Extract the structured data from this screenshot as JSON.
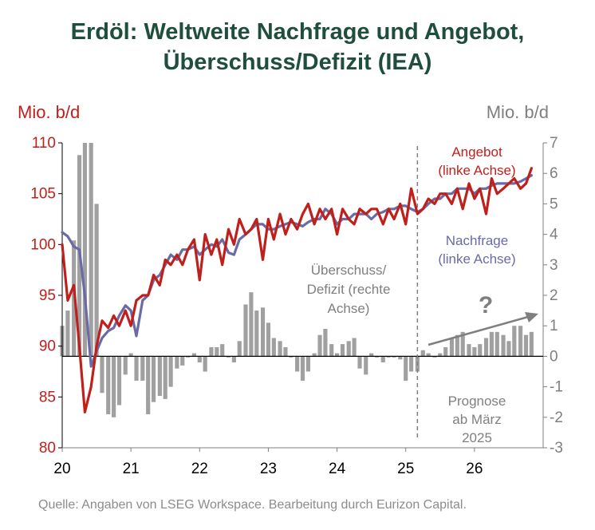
{
  "title": {
    "line1": "Erdöl: Weltweite Nachfrage und Angebot,",
    "line2": "Überschuss/Defizit (IEA)"
  },
  "source": "Quelle: Angaben von LSEG Workspace. Bearbeitung durch Eurizon Capital.",
  "colors": {
    "supply": "#c0201c",
    "demand": "#6a6aa6",
    "balance": "#a0a0a0",
    "axis_left": "#c0201c",
    "axis_right": "#7f7f7f",
    "title": "#1f4e3d",
    "annotation": "#7f7f7f"
  },
  "chart_data": {
    "type": "line",
    "left_axis": {
      "unit_label": "Mio. b/d",
      "range": [
        80,
        110
      ],
      "ticks": [
        80,
        85,
        90,
        95,
        100,
        105,
        110
      ]
    },
    "right_axis": {
      "unit_label": "Mio. b/d",
      "range": [
        -3,
        7
      ],
      "ticks": [
        -3,
        -2,
        -1,
        0,
        1,
        2,
        3,
        4,
        5,
        6,
        7
      ]
    },
    "x_axis": {
      "range": [
        2020.0,
        2027.0
      ],
      "ticks": [
        {
          "value": 2020,
          "label": "20"
        },
        {
          "value": 2021,
          "label": "21"
        },
        {
          "value": 2022,
          "label": "22"
        },
        {
          "value": 2023,
          "label": "23"
        },
        {
          "value": 2024,
          "label": "24"
        },
        {
          "value": 2025,
          "label": "25"
        },
        {
          "value": 2026,
          "label": "26"
        }
      ]
    },
    "forecast_start": 2025.17,
    "grid": false,
    "series": [
      {
        "name": "Angebot",
        "axis": "left",
        "type": "line",
        "x": [
          2020.0,
          2020.08,
          2020.17,
          2020.25,
          2020.33,
          2020.42,
          2020.5,
          2020.58,
          2020.67,
          2020.75,
          2020.83,
          2020.92,
          2021.0,
          2021.08,
          2021.17,
          2021.25,
          2021.33,
          2021.42,
          2021.5,
          2021.58,
          2021.67,
          2021.75,
          2021.83,
          2021.92,
          2022.0,
          2022.08,
          2022.17,
          2022.25,
          2022.33,
          2022.42,
          2022.5,
          2022.58,
          2022.67,
          2022.75,
          2022.83,
          2022.92,
          2023.0,
          2023.08,
          2023.17,
          2023.25,
          2023.33,
          2023.42,
          2023.5,
          2023.58,
          2023.67,
          2023.75,
          2023.83,
          2023.92,
          2024.0,
          2024.08,
          2024.17,
          2024.25,
          2024.33,
          2024.42,
          2024.5,
          2024.58,
          2024.67,
          2024.75,
          2024.83,
          2024.92,
          2025.0,
          2025.08,
          2025.17,
          2025.25,
          2025.33,
          2025.42,
          2025.5,
          2025.58,
          2025.67,
          2025.75,
          2025.83,
          2025.92,
          2026.0,
          2026.08,
          2026.17,
          2026.25,
          2026.33,
          2026.42,
          2026.5,
          2026.58,
          2026.67,
          2026.75,
          2026.83
        ],
        "values": [
          100.0,
          94.5,
          96.0,
          90.0,
          83.5,
          86.0,
          90.0,
          92.5,
          91.8,
          93.0,
          92.0,
          93.5,
          92.0,
          94.5,
          95.0,
          95.0,
          97.0,
          96.0,
          98.5,
          98.0,
          99.0,
          98.0,
          99.5,
          100.5,
          96.5,
          101.0,
          99.0,
          100.5,
          98.0,
          101.5,
          100.0,
          102.5,
          101.0,
          101.5,
          102.5,
          98.5,
          102.5,
          100.5,
          103.0,
          101.0,
          102.5,
          101.5,
          103.0,
          104.0,
          102.0,
          103.5,
          102.5,
          103.5,
          101.0,
          103.5,
          102.5,
          102.0,
          103.5,
          103.0,
          103.5,
          103.5,
          102.0,
          103.5,
          102.5,
          104.0,
          102.0,
          105.5,
          103.0,
          103.5,
          104.5,
          104.0,
          105.0,
          105.0,
          104.0,
          105.5,
          103.5,
          106.0,
          104.5,
          105.5,
          103.0,
          106.5,
          105.0,
          105.5,
          106.0,
          106.5,
          105.5,
          106.0,
          107.5
        ]
      },
      {
        "name": "Nachfrage",
        "axis": "left",
        "type": "line",
        "x": [
          2020.0,
          2020.08,
          2020.17,
          2020.25,
          2020.33,
          2020.42,
          2020.5,
          2020.58,
          2020.67,
          2020.75,
          2020.83,
          2020.92,
          2021.0,
          2021.08,
          2021.17,
          2021.25,
          2021.33,
          2021.42,
          2021.5,
          2021.58,
          2021.67,
          2021.75,
          2021.83,
          2021.92,
          2022.0,
          2022.08,
          2022.17,
          2022.25,
          2022.33,
          2022.42,
          2022.5,
          2022.58,
          2022.67,
          2022.75,
          2022.83,
          2022.92,
          2023.0,
          2023.08,
          2023.17,
          2023.25,
          2023.33,
          2023.42,
          2023.5,
          2023.58,
          2023.67,
          2023.75,
          2023.83,
          2023.92,
          2024.0,
          2024.08,
          2024.17,
          2024.25,
          2024.33,
          2024.42,
          2024.5,
          2024.58,
          2024.67,
          2024.75,
          2024.83,
          2024.92,
          2025.0,
          2025.08,
          2025.17,
          2025.25,
          2025.33,
          2025.42,
          2025.5,
          2025.58,
          2025.67,
          2025.75,
          2025.83,
          2025.92,
          2026.0,
          2026.08,
          2026.17,
          2026.25,
          2026.33,
          2026.42,
          2026.5,
          2026.58,
          2026.67,
          2026.75,
          2026.83
        ],
        "values": [
          101.2,
          100.8,
          99.8,
          99.5,
          95.0,
          88.0,
          89.5,
          90.8,
          91.5,
          91.8,
          93.0,
          94.0,
          93.5,
          91.0,
          94.5,
          95.0,
          96.5,
          97.0,
          98.0,
          99.0,
          98.5,
          99.5,
          99.5,
          99.8,
          99.0,
          99.5,
          100.0,
          99.8,
          100.5,
          99.2,
          99.0,
          100.5,
          101.0,
          101.5,
          102.0,
          102.0,
          101.5,
          101.5,
          101.8,
          102.0,
          102.2,
          102.0,
          101.8,
          102.2,
          102.5,
          102.5,
          103.5,
          103.0,
          102.0,
          102.5,
          102.5,
          103.0,
          103.0,
          103.0,
          102.5,
          103.0,
          103.2,
          103.5,
          103.5,
          103.8,
          103.8,
          103.5,
          103.2,
          103.5,
          104.0,
          104.5,
          104.5,
          105.0,
          105.0,
          105.5,
          105.5,
          105.5,
          105.0,
          105.5,
          105.5,
          105.8,
          106.0,
          106.0,
          106.0,
          106.0,
          106.2,
          106.5,
          106.8
        ]
      },
      {
        "name": "Überschuss/Defizit",
        "axis": "right",
        "type": "bar",
        "x": [
          2020.0,
          2020.08,
          2020.17,
          2020.25,
          2020.33,
          2020.42,
          2020.5,
          2020.58,
          2020.67,
          2020.75,
          2020.83,
          2020.92,
          2021.0,
          2021.08,
          2021.17,
          2021.25,
          2021.33,
          2021.42,
          2021.5,
          2021.58,
          2021.67,
          2021.75,
          2021.83,
          2021.92,
          2022.0,
          2022.08,
          2022.17,
          2022.25,
          2022.33,
          2022.42,
          2022.5,
          2022.58,
          2022.67,
          2022.75,
          2022.83,
          2022.92,
          2023.0,
          2023.08,
          2023.17,
          2023.25,
          2023.33,
          2023.42,
          2023.5,
          2023.58,
          2023.67,
          2023.75,
          2023.83,
          2023.92,
          2024.0,
          2024.08,
          2024.17,
          2024.25,
          2024.33,
          2024.42,
          2024.5,
          2024.58,
          2024.67,
          2024.75,
          2024.83,
          2024.92,
          2025.0,
          2025.08,
          2025.17,
          2025.25,
          2025.33,
          2025.42,
          2025.5,
          2025.58,
          2025.67,
          2025.75,
          2025.83,
          2025.92,
          2026.0,
          2026.08,
          2026.17,
          2026.25,
          2026.33,
          2026.42,
          2026.5,
          2026.58,
          2026.67,
          2026.75,
          2026.83
        ],
        "values": [
          1.0,
          1.5,
          3.8,
          6.6,
          7.0,
          7.0,
          5.0,
          -1.2,
          -1.9,
          -2.0,
          -1.6,
          -0.6,
          0.1,
          -0.8,
          -0.8,
          -1.9,
          -1.5,
          -1.3,
          -1.4,
          -1.0,
          -0.4,
          -0.3,
          0.0,
          0.1,
          -0.2,
          -0.5,
          0.3,
          0.3,
          0.4,
          0.0,
          -0.2,
          0.5,
          1.7,
          2.1,
          1.5,
          1.6,
          1.1,
          0.6,
          0.5,
          0.3,
          0.0,
          -0.5,
          -0.8,
          -0.5,
          0.1,
          0.7,
          0.9,
          0.4,
          0.1,
          0.4,
          0.5,
          0.6,
          -0.4,
          -0.6,
          0.1,
          0.0,
          -0.2,
          0.0,
          0.0,
          -0.1,
          -0.8,
          -0.5,
          -0.5,
          0.2,
          0.1,
          0.0,
          0.1,
          0.3,
          0.6,
          0.7,
          0.8,
          0.4,
          0.3,
          0.4,
          0.6,
          0.8,
          0.8,
          0.7,
          0.5,
          1.0,
          1.0,
          0.7,
          0.8
        ]
      }
    ],
    "annotations": {
      "angebot": "Angebot",
      "angebot_axis": "(linke Achse)",
      "nachfrage": "Nachfrage",
      "nachfrage_axis": "(linke Achse)",
      "balance_1": "Überschuss/",
      "balance_2": "Defizit (rechte",
      "balance_3": "Achse)",
      "question": "?",
      "forecast_1": "Prognose",
      "forecast_2": "ab März",
      "forecast_3": "2025"
    }
  }
}
